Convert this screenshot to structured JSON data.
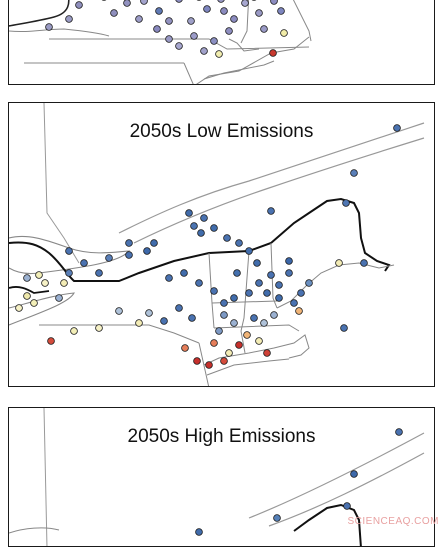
{
  "panels": [
    {
      "title": "",
      "stations": [
        {
          "id": "a1",
          "c": "#9a9bc4"
        },
        {
          "id": "a2",
          "c": "#8f8fbd"
        },
        {
          "id": "a3",
          "c": "#a3a3cc"
        },
        {
          "id": "a4",
          "c": "#9292c0"
        },
        {
          "id": "a5",
          "c": "#5f79b4"
        },
        {
          "id": "a6",
          "c": "#8d8ec1"
        },
        {
          "id": "a7",
          "c": "#9fa0c8"
        },
        {
          "id": "a8",
          "c": "#7e86bf"
        },
        {
          "id": "a9",
          "c": "#9999c5"
        },
        {
          "id": "a10",
          "c": "#8b8bbf"
        },
        {
          "id": "a11",
          "c": "#a7a7cf"
        },
        {
          "id": "a12",
          "c": "#9999c5"
        },
        {
          "id": "a13",
          "c": "#8c8cc0"
        },
        {
          "id": "a14",
          "c": "#9b9bc8"
        },
        {
          "id": "a15",
          "c": "#8b8fc2"
        },
        {
          "id": "a16",
          "c": "#f2eeb0"
        },
        {
          "id": "a17",
          "c": "#8e8ec0"
        },
        {
          "id": "a18",
          "c": "#c8392f"
        },
        {
          "id": "a19",
          "c": "#f1eca8"
        },
        {
          "id": "a20",
          "c": "#9a9ac6"
        },
        {
          "id": "a21",
          "c": "#a1a1ca"
        },
        {
          "id": "a22",
          "c": "#5e7ab6"
        },
        {
          "id": "a23",
          "c": "#8888bd"
        },
        {
          "id": "a24",
          "c": "#9d9dc8"
        }
      ]
    },
    {
      "title": "2050s Low Emissions",
      "stations": [
        {
          "id": "b1",
          "c": "#4a72b0"
        },
        {
          "id": "b2",
          "c": "#5a7fb8"
        },
        {
          "id": "b3",
          "c": "#4e76b3"
        },
        {
          "id": "b4",
          "c": "#4a72b0"
        },
        {
          "id": "b5",
          "c": "#4b74b1"
        },
        {
          "id": "b6",
          "c": "#416cab"
        },
        {
          "id": "b7",
          "c": "#416cab"
        },
        {
          "id": "b8",
          "c": "#3d68a9"
        },
        {
          "id": "b9",
          "c": "#416cab"
        },
        {
          "id": "b10",
          "c": "#4470ae"
        },
        {
          "id": "b11",
          "c": "#4a72b0"
        },
        {
          "id": "b12",
          "c": "#3b66a8"
        },
        {
          "id": "b13",
          "c": "#f3efb8"
        },
        {
          "id": "b14",
          "c": "#f6f1c6"
        },
        {
          "id": "b15",
          "c": "#eee8ac"
        },
        {
          "id": "b16",
          "c": "#d44c3c"
        },
        {
          "id": "b17",
          "c": "#c6302c"
        },
        {
          "id": "b18",
          "c": "#f0b477"
        },
        {
          "id": "b19",
          "c": "#e57e5a"
        },
        {
          "id": "b20",
          "c": "#9bb1d1"
        },
        {
          "id": "b21",
          "c": "#afc2d9"
        },
        {
          "id": "b22",
          "c": "#cf4137"
        },
        {
          "id": "b23",
          "c": "#f3ecb5"
        },
        {
          "id": "b24",
          "c": "#7d99c4"
        }
      ]
    },
    {
      "title": "2050s High Emissions",
      "stations": [
        {
          "id": "c1",
          "c": "#4a72b0"
        },
        {
          "id": "c2",
          "c": "#3e69aa"
        },
        {
          "id": "c3",
          "c": "#5580b8"
        },
        {
          "id": "c4",
          "c": "#416cab"
        },
        {
          "id": "c5",
          "c": "#4a72b0"
        }
      ]
    }
  ],
  "watermark": "SCIENCEAQ.COM"
}
